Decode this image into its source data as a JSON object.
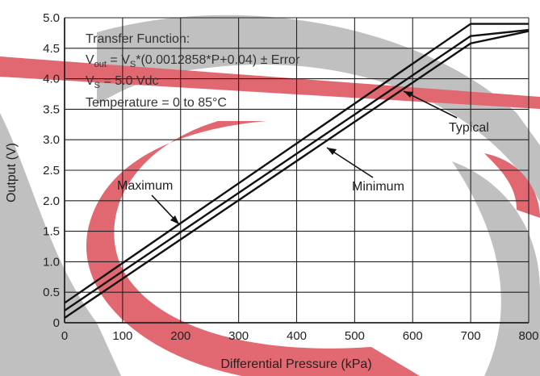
{
  "colors": {
    "background": "#ffffff",
    "watermark_gray": "#bdbdbd",
    "watermark_red": "#e0606a",
    "grid": "#222222",
    "line": "#111111"
  },
  "chart_data": {
    "type": "line",
    "title": "",
    "xlabel": "Differential Pressure (kPa)",
    "ylabel": "Output (V)",
    "xlim": [
      0,
      800
    ],
    "ylim": [
      0,
      5.0
    ],
    "x_ticks": [
      0,
      100,
      200,
      300,
      400,
      500,
      600,
      700,
      800
    ],
    "y_ticks": [
      0,
      0.5,
      1.0,
      1.5,
      2.0,
      2.5,
      3.0,
      3.5,
      4.0,
      4.5,
      5.0
    ],
    "x_tick_labels": [
      "0",
      "100",
      "200",
      "300",
      "400",
      "500",
      "600",
      "700",
      "800"
    ],
    "y_tick_labels": [
      "0",
      "0.5",
      "1.0",
      "1.5",
      "2.0",
      "2.5",
      "3.0",
      "3.5",
      "4.0",
      "4.5",
      "5.0"
    ],
    "grid": true,
    "series": [
      {
        "name": "Maximum",
        "x": [
          0,
          700,
          800
        ],
        "y": [
          0.325,
          4.9,
          4.9
        ]
      },
      {
        "name": "Typical",
        "x": [
          0,
          700,
          800
        ],
        "y": [
          0.2,
          4.7,
          4.8
        ]
      },
      {
        "name": "Minimum",
        "x": [
          0,
          700,
          800
        ],
        "y": [
          0.08,
          4.58,
          4.78
        ]
      }
    ],
    "annotations": [
      {
        "text": "Maximum",
        "arrow_to": [
          200,
          1.64
        ]
      },
      {
        "text": "Minimum",
        "arrow_to": [
          420,
          2.95
        ]
      },
      {
        "text": "Typical",
        "arrow_to": [
          605,
          4.12
        ]
      }
    ],
    "transfer_function": {
      "heading": "Transfer Function:",
      "eq_v": "V",
      "eq_out_sub": "out",
      "eq_mid": " = V",
      "eq_s_sub": "S",
      "eq_rest": "*(0.0012858*P+0.04) ± Error",
      "vs_v": "V",
      "vs_sub": "S",
      "vs_rest": " = 5.0 Vdc",
      "temperature": "Temperature = 0 to 85°C"
    }
  }
}
